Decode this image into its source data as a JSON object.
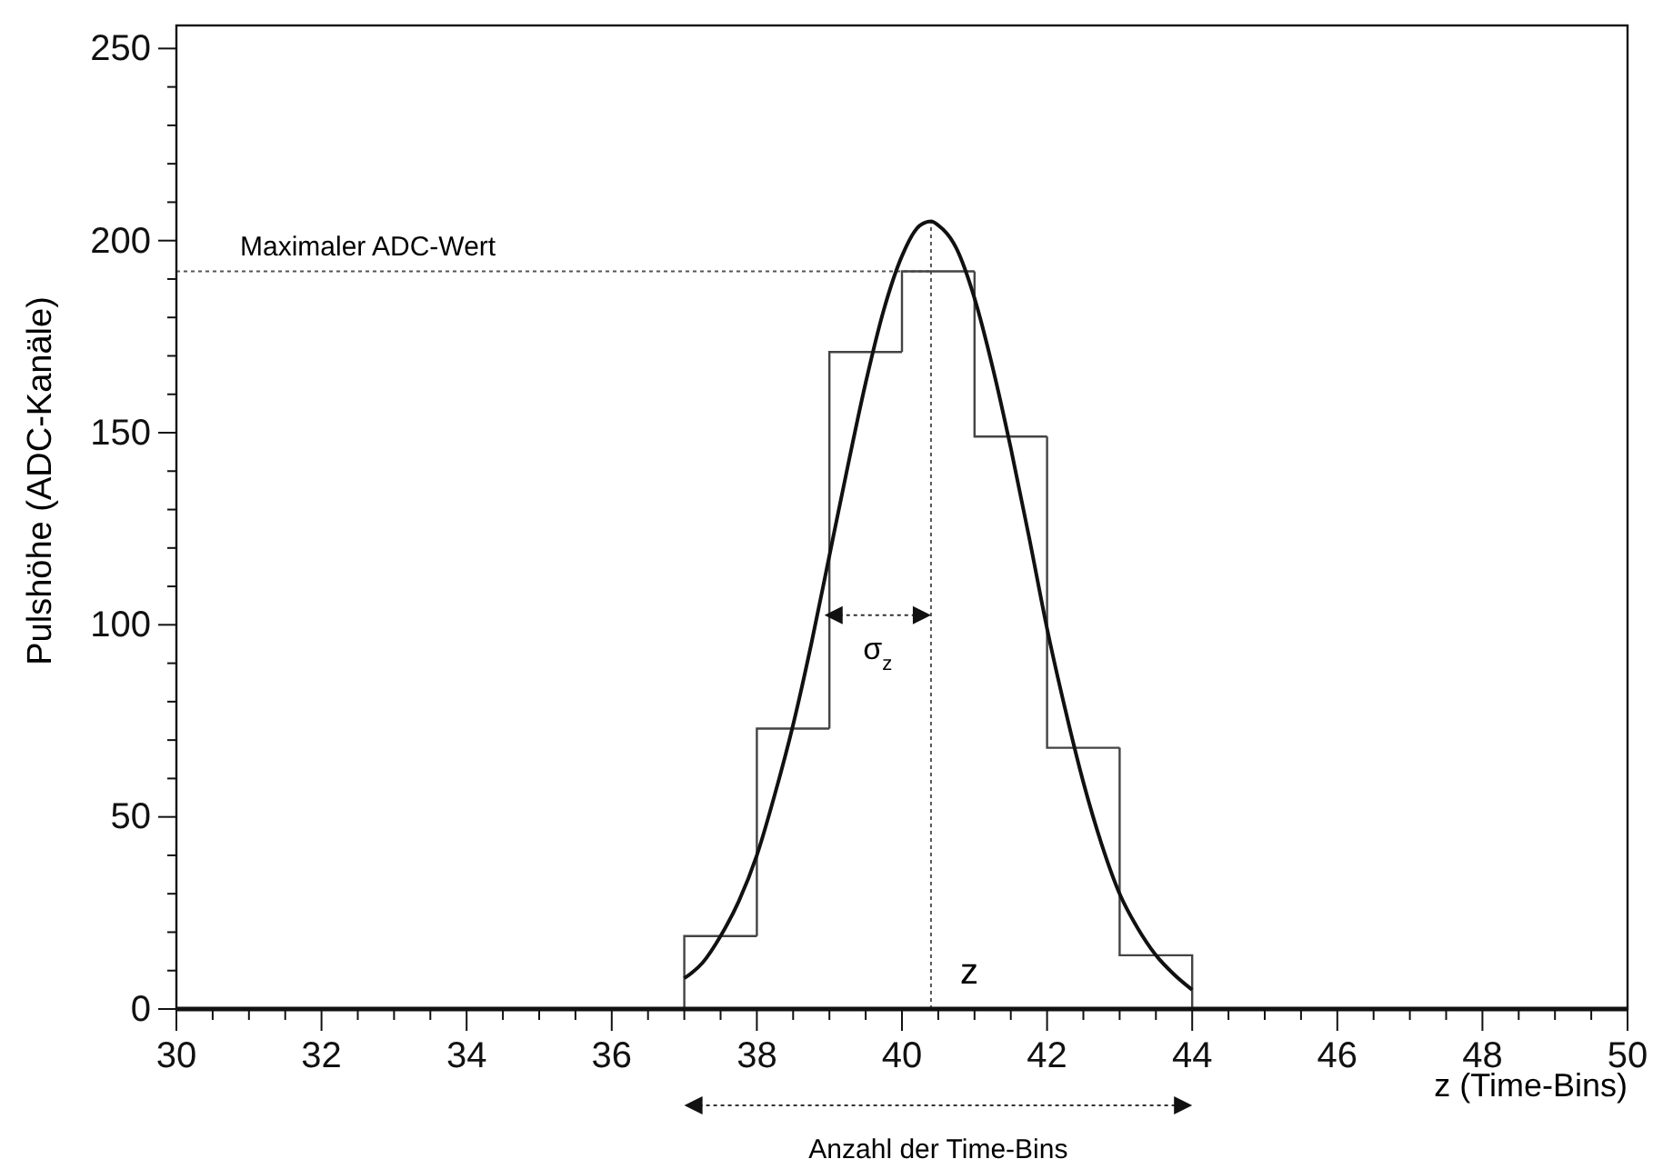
{
  "chart_data": {
    "type": "histogram",
    "xlabel": "z (Time-Bins)",
    "ylabel": "Pulshöhe (ADC-Kanäle)",
    "xlim": [
      30,
      50
    ],
    "ylim": [
      0,
      256
    ],
    "xticks": [
      30,
      {
        "value": 30.5,
        "label": null
      },
      {
        "value": 31,
        "label": null
      },
      {
        "value": 31.5,
        "label": null
      },
      32,
      {
        "value": 32.5,
        "label": null
      },
      {
        "value": 33,
        "label": null
      },
      {
        "value": 33.5,
        "label": null
      },
      34,
      {
        "value": 34.5,
        "label": null
      },
      {
        "value": 35,
        "label": null
      },
      {
        "value": 35.5,
        "label": null
      },
      36,
      {
        "value": 36.5,
        "label": null
      },
      {
        "value": 37,
        "label": null
      },
      {
        "value": 37.5,
        "label": null
      },
      38,
      {
        "value": 38.5,
        "label": null
      },
      {
        "value": 39,
        "label": null
      },
      {
        "value": 39.5,
        "label": null
      },
      40,
      {
        "value": 40.5,
        "label": null
      },
      {
        "value": 41,
        "label": null
      },
      {
        "value": 41.5,
        "label": null
      },
      42,
      {
        "value": 42.5,
        "label": null
      },
      {
        "value": 43,
        "label": null
      },
      {
        "value": 43.5,
        "label": null
      },
      44,
      {
        "value": 44.5,
        "label": null
      },
      {
        "value": 45,
        "label": null
      },
      {
        "value": 45.5,
        "label": null
      },
      46,
      {
        "value": 46.5,
        "label": null
      },
      {
        "value": 47,
        "label": null
      },
      {
        "value": 47.5,
        "label": null
      },
      48,
      {
        "value": 48.5,
        "label": null
      },
      {
        "value": 49,
        "label": null
      },
      {
        "value": 49.5,
        "label": null
      },
      50
    ],
    "yticks": [
      0,
      {
        "value": 10,
        "label": null
      },
      {
        "value": 20,
        "label": null
      },
      {
        "value": 30,
        "label": null
      },
      {
        "value": 40,
        "label": null
      },
      50,
      {
        "value": 60,
        "label": null
      },
      {
        "value": 70,
        "label": null
      },
      {
        "value": 80,
        "label": null
      },
      {
        "value": 90,
        "label": null
      },
      100,
      {
        "value": 110,
        "label": null
      },
      {
        "value": 120,
        "label": null
      },
      {
        "value": 130,
        "label": null
      },
      {
        "value": 140,
        "label": null
      },
      150,
      {
        "value": 160,
        "label": null
      },
      {
        "value": 170,
        "label": null
      },
      {
        "value": 180,
        "label": null
      },
      {
        "value": 190,
        "label": null
      },
      200,
      {
        "value": 210,
        "label": null
      },
      {
        "value": 220,
        "label": null
      },
      {
        "value": 230,
        "label": null
      },
      {
        "value": 240,
        "label": null
      },
      250
    ],
    "series": [
      {
        "type": "histogram",
        "color": "#444444",
        "bins": [
          37,
          38,
          39,
          40,
          41,
          42,
          43,
          44
        ],
        "values": [
          19,
          73,
          171,
          192,
          149,
          68,
          14
        ]
      },
      {
        "type": "line",
        "color": "#111111",
        "x": [
          37,
          37.25,
          37.5,
          37.75,
          38,
          38.25,
          38.5,
          38.75,
          39,
          39.25,
          39.5,
          39.75,
          40,
          40.25,
          40.4,
          40.5,
          40.75,
          41,
          41.25,
          41.5,
          41.75,
          42,
          42.25,
          42.5,
          42.75,
          43,
          43.25,
          43.5,
          43.75,
          44
        ],
        "values": [
          8,
          12,
          19,
          28,
          40,
          56,
          74,
          95,
          118,
          141,
          163,
          182,
          196,
          204,
          205,
          204,
          198,
          185,
          167,
          146,
          123,
          99,
          78,
          59,
          43,
          30,
          21,
          14,
          9,
          5
        ]
      }
    ],
    "ref_lines": [
      {
        "axis": "y",
        "value": 192,
        "label": "Maximaler ADC-Wert",
        "line_style": "dotted",
        "color": "#555555"
      },
      {
        "axis": "x",
        "value": 40.4,
        "label": "z",
        "line_style": "dotted",
        "color": "#555555"
      }
    ],
    "annotations": [
      "σ$_{z}$",
      "Anzahl der Time-Bins"
    ],
    "grid": false,
    "line_style": "solid"
  }
}
